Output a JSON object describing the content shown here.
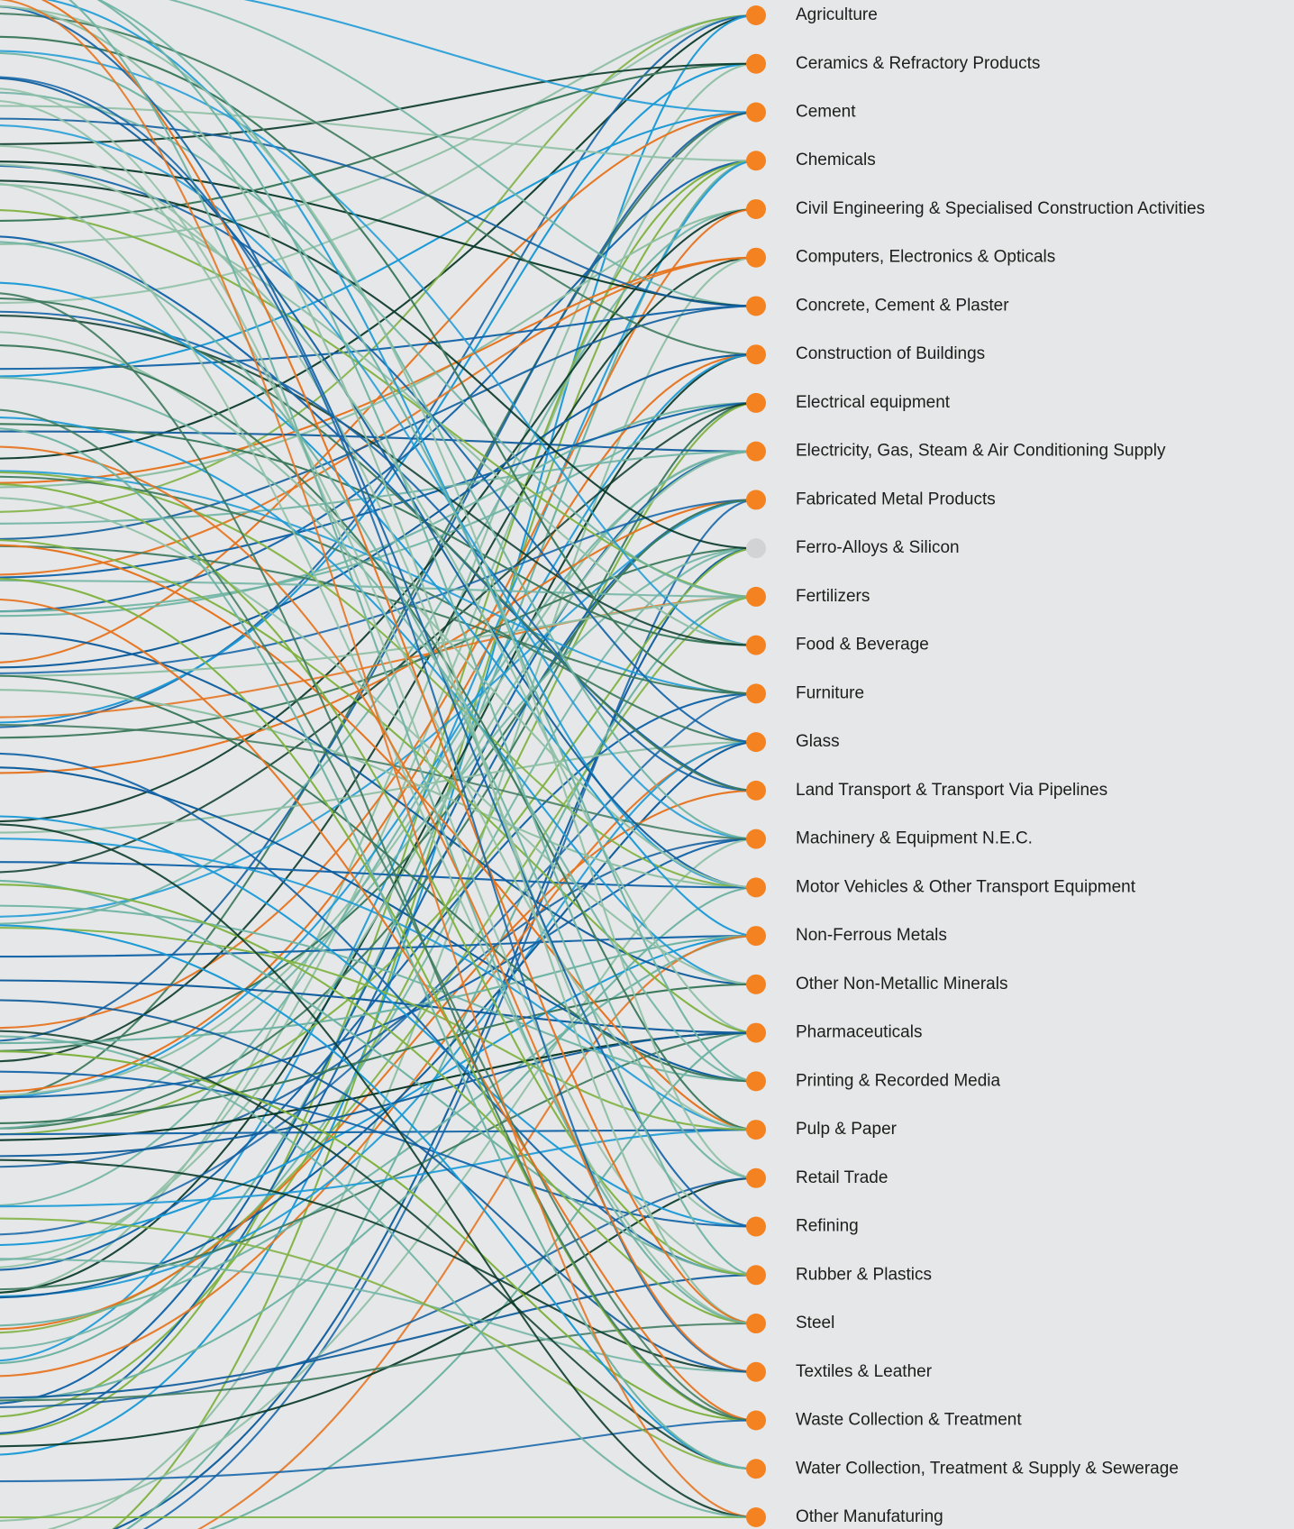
{
  "nodes": [
    {
      "label": "Agriculture",
      "active": true
    },
    {
      "label": "Ceramics & Refractory Products",
      "active": true
    },
    {
      "label": "Cement",
      "active": true
    },
    {
      "label": "Chemicals",
      "active": true
    },
    {
      "label": "Civil Engineering & Specialised Construction Activities",
      "active": true
    },
    {
      "label": "Computers, Electronics & Opticals",
      "active": true
    },
    {
      "label": "Concrete, Cement & Plaster",
      "active": true
    },
    {
      "label": "Construction of Buildings",
      "active": true
    },
    {
      "label": "Electrical equipment",
      "active": true
    },
    {
      "label": "Electricity, Gas, Steam & Air Conditioning Supply",
      "active": true
    },
    {
      "label": "Fabricated Metal Products",
      "active": true
    },
    {
      "label": "Ferro-Alloys & Silicon",
      "active": false
    },
    {
      "label": "Fertilizers",
      "active": true
    },
    {
      "label": "Food & Beverage",
      "active": true
    },
    {
      "label": "Furniture",
      "active": true
    },
    {
      "label": "Glass",
      "active": true
    },
    {
      "label": "Land Transport & Transport Via Pipelines",
      "active": true
    },
    {
      "label": "Machinery & Equipment N.E.C.",
      "active": true
    },
    {
      "label": "Motor Vehicles & Other Transport Equipment",
      "active": true
    },
    {
      "label": "Non-Ferrous Metals",
      "active": true
    },
    {
      "label": "Other Non-Metallic Minerals",
      "active": true
    },
    {
      "label": "Pharmaceuticals",
      "active": true
    },
    {
      "label": "Printing & Recorded Media",
      "active": true
    },
    {
      "label": "Pulp & Paper",
      "active": true
    },
    {
      "label": "Retail Trade",
      "active": true
    },
    {
      "label": "Refining",
      "active": true
    },
    {
      "label": "Rubber & Plastics",
      "active": true
    },
    {
      "label": "Steel",
      "active": true
    },
    {
      "label": "Textiles & Leather",
      "active": true
    },
    {
      "label": "Waste Collection & Treatment",
      "active": true
    },
    {
      "label": "Water Collection, Treatment & Supply & Sewerage",
      "active": true
    },
    {
      "label": "Other Manufaturing",
      "active": true
    }
  ]
}
